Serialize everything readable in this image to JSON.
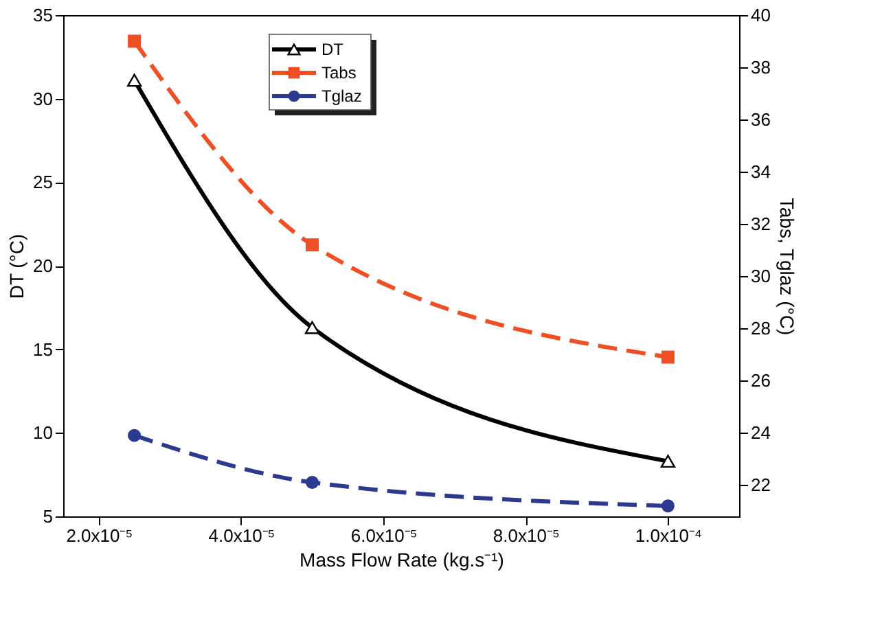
{
  "chart_data": {
    "type": "line",
    "xlabel": "Mass Flow Rate (kg.s⁻¹)",
    "ylabel": "DT (°C)",
    "y2label": "Tabs, Tglaz (°C)",
    "x": [
      2.5e-05,
      5e-05,
      0.0001
    ],
    "series": [
      {
        "name": "DT",
        "color": "#000000",
        "values": [
          31.1,
          16.3,
          8.3
        ],
        "marker": "triangle",
        "line_style": "solid"
      },
      {
        "name": "Tabs",
        "color": "#f04e23",
        "values": [
          39.0,
          31.2,
          26.9
        ],
        "marker": "square",
        "line_style": "dashed",
        "axis": "y2"
      },
      {
        "name": "Tglaz",
        "color": "#2b3990",
        "values": [
          23.9,
          22.1,
          21.2
        ],
        "marker": "circle",
        "line_style": "dashed",
        "axis": "y2"
      }
    ],
    "xlim": [
      1.5e-05,
      0.00011
    ],
    "xticks": [
      {
        "value": 2e-05,
        "label": "2.0x10⁻⁵"
      },
      {
        "value": 4e-05,
        "label": "4.0x10⁻⁵"
      },
      {
        "value": 6e-05,
        "label": "6.0x10⁻⁵"
      },
      {
        "value": 8e-05,
        "label": "8.0x10⁻⁵"
      },
      {
        "value": 0.0001,
        "label": "1.0x10⁻⁴"
      }
    ],
    "ylim": [
      5,
      35
    ],
    "yticks": [
      5,
      10,
      15,
      20,
      25,
      30,
      35
    ],
    "y2lim": [
      20.8,
      40
    ],
    "y2ticks": [
      22,
      24,
      26,
      28,
      30,
      32,
      34,
      36,
      38,
      40
    ],
    "grid": false,
    "legend": "top"
  }
}
